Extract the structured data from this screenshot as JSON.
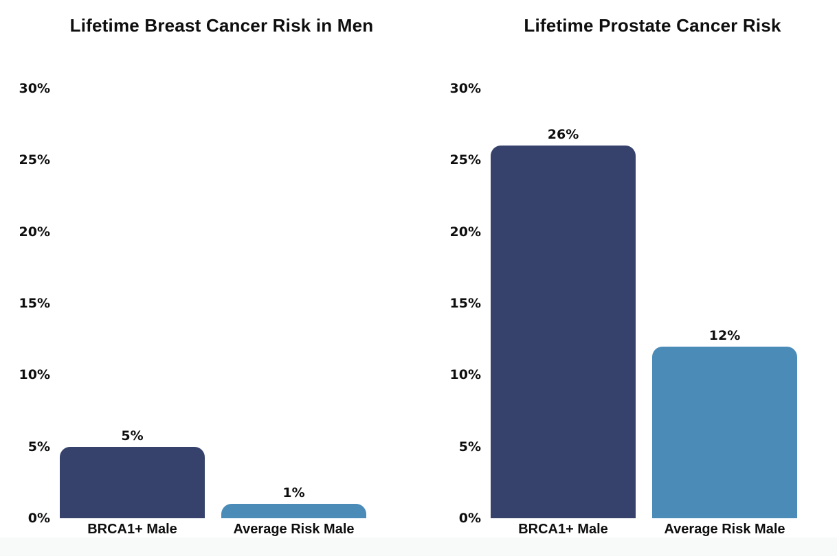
{
  "page": {
    "background_color": "#ffffff",
    "footer_strip_color": "#f8f9f9",
    "text_color": "#0e0e0e"
  },
  "chart_data": [
    {
      "type": "bar",
      "title": "Lifetime Breast Cancer Risk in Men",
      "categories": [
        "BRCA1+ Male",
        "Average Risk Male"
      ],
      "values": [
        5,
        1
      ],
      "value_labels": [
        "5%",
        "1%"
      ],
      "bar_colors": [
        "#36426b",
        "#4a8bb8"
      ],
      "xlabel": "",
      "ylabel": "",
      "ylim": [
        0,
        30
      ],
      "yticks": [
        0,
        5,
        10,
        15,
        20,
        25,
        30
      ],
      "ytick_labels": [
        "0%",
        "5%",
        "10%",
        "15%",
        "20%",
        "25%",
        "30%"
      ],
      "grid": false,
      "legend": null,
      "bar_corner_style": "rounded-top"
    },
    {
      "type": "bar",
      "title": "Lifetime Prostate Cancer Risk",
      "categories": [
        "BRCA1+ Male",
        "Average Risk Male"
      ],
      "values": [
        26,
        12
      ],
      "value_labels": [
        "26%",
        "12%"
      ],
      "bar_colors": [
        "#36426b",
        "#4a8bb8"
      ],
      "xlabel": "",
      "ylabel": "",
      "ylim": [
        0,
        30
      ],
      "yticks": [
        0,
        5,
        10,
        15,
        20,
        25,
        30
      ],
      "ytick_labels": [
        "0%",
        "5%",
        "10%",
        "15%",
        "20%",
        "25%",
        "30%"
      ],
      "grid": false,
      "legend": null,
      "bar_corner_style": "rounded-top"
    }
  ]
}
